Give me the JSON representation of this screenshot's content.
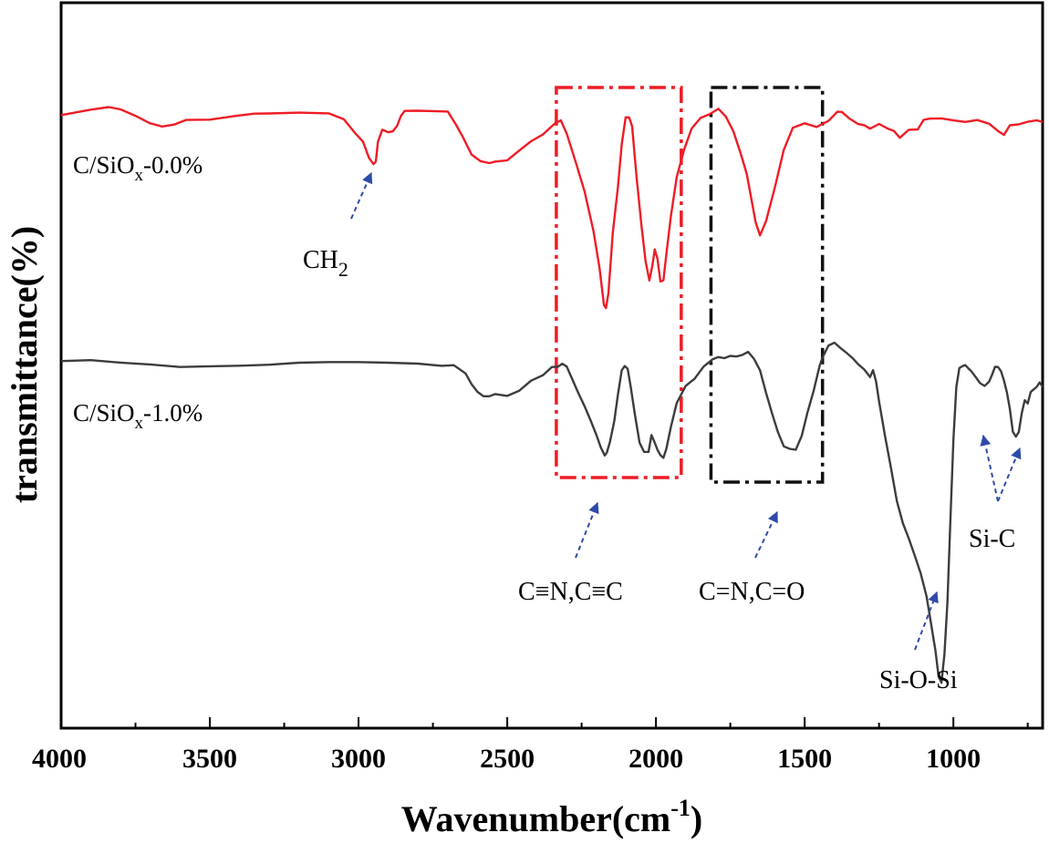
{
  "chart_data": {
    "type": "line",
    "title": "",
    "xlabel": "Wavenumber(cm",
    "xlabel_sup": "-1",
    "xlabel_close": ")",
    "ylabel": "transmittance(%)",
    "xlim": [
      4000,
      700
    ],
    "x_inverted": true,
    "yticks_shown": false,
    "grid": false,
    "xticks": [
      4000,
      3500,
      3000,
      2500,
      2000,
      1500,
      1000
    ],
    "xtick_labels": [
      "4000",
      "3500",
      "3000",
      "2500",
      "2000",
      "1500",
      "1000"
    ],
    "series": [
      {
        "name": "C/SiOx-0.0%",
        "label_main": "C/SiO",
        "label_sub": "x",
        "label_tail": "-0.0%",
        "color": "#ee1c25",
        "x": [
          4000,
          3900,
          3840,
          3800,
          3750,
          3700,
          3660,
          3620,
          3580,
          3500,
          3420,
          3350,
          3300,
          3200,
          3100,
          3050,
          3010,
          2985,
          2965,
          2950,
          2942,
          2935,
          2920,
          2900,
          2885,
          2870,
          2858,
          2845,
          2800,
          2750,
          2700,
          2672,
          2650,
          2620,
          2590,
          2560,
          2540,
          2500,
          2460,
          2420,
          2380,
          2340,
          2320,
          2300,
          2270,
          2240,
          2210,
          2190,
          2175,
          2168,
          2160,
          2145,
          2128,
          2115,
          2102,
          2090,
          2080,
          2065,
          2048,
          2035,
          2022,
          2012,
          2004,
          1995,
          1985,
          1975,
          1965,
          1950,
          1930,
          1905,
          1880,
          1850,
          1820,
          1790,
          1765,
          1740,
          1715,
          1695,
          1680,
          1665,
          1650,
          1630,
          1600,
          1570,
          1540,
          1500,
          1460,
          1420,
          1390,
          1375,
          1350,
          1320,
          1300,
          1280,
          1250,
          1220,
          1200,
          1180,
          1150,
          1120,
          1100,
          1080,
          1040,
          1000,
          960,
          920,
          880,
          850,
          830,
          810,
          780,
          750,
          720,
          700
        ],
        "y": [
          4,
          9,
          13,
          9,
          2,
          -6,
          -8,
          -5,
          -4,
          0,
          4,
          7,
          7,
          7,
          5,
          -2,
          -14,
          -28,
          -43,
          -52,
          -45,
          -28,
          -12,
          -17,
          -16,
          -7,
          4,
          7,
          7,
          7,
          7,
          -6,
          -20,
          -37,
          -48,
          -50,
          -49,
          -45,
          -36,
          -24,
          -16,
          -8,
          -2,
          -17,
          -48,
          -82,
          -122,
          -165,
          -203,
          -210,
          -190,
          -125,
          -75,
          -28,
          0,
          1,
          -8,
          -65,
          -120,
          -158,
          -178,
          -162,
          -143,
          -155,
          -180,
          -175,
          -150,
          -110,
          -65,
          -33,
          -12,
          -1,
          7,
          11,
          2,
          -14,
          -38,
          -63,
          -87,
          -113,
          -128,
          -112,
          -75,
          -33,
          -12,
          -5,
          -10,
          -3,
          6,
          8,
          -1,
          -7,
          -9,
          -9,
          -8,
          -12,
          -16,
          -20,
          -15,
          -12,
          -4,
          0,
          2,
          -4,
          -5,
          0,
          -6,
          -14,
          -18,
          -10,
          -6,
          -3,
          -1,
          -3
        ]
      },
      {
        "name": "C/SiOx-1.0%",
        "label_main": "C/SiO",
        "label_sub": "x",
        "label_tail": "-1.0%",
        "color": "#3c3c3c",
        "x": [
          4000,
          3900,
          3800,
          3700,
          3600,
          3500,
          3400,
          3300,
          3200,
          3100,
          3000,
          2900,
          2800,
          2720,
          2680,
          2660,
          2640,
          2620,
          2600,
          2580,
          2560,
          2540,
          2500,
          2460,
          2420,
          2380,
          2350,
          2330,
          2315,
          2300,
          2280,
          2260,
          2240,
          2220,
          2200,
          2185,
          2172,
          2165,
          2155,
          2140,
          2128,
          2115,
          2105,
          2095,
          2085,
          2070,
          2055,
          2040,
          2025,
          2015,
          2005,
          1995,
          1985,
          1975,
          1965,
          1950,
          1930,
          1900,
          1870,
          1840,
          1810,
          1790,
          1770,
          1750,
          1730,
          1710,
          1690,
          1670,
          1650,
          1630,
          1610,
          1590,
          1570,
          1550,
          1530,
          1510,
          1490,
          1470,
          1450,
          1440,
          1420,
          1400,
          1380,
          1360,
          1340,
          1320,
          1300,
          1280,
          1270,
          1260,
          1250,
          1230,
          1210,
          1190,
          1170,
          1150,
          1130,
          1110,
          1090,
          1075,
          1060,
          1050,
          1040,
          1030,
          1020,
          1010,
          1000,
          990,
          980,
          970,
          960,
          950,
          940,
          925,
          910,
          895,
          880,
          870,
          860,
          850,
          840,
          830,
          820,
          810,
          800,
          790,
          780,
          770,
          760,
          750,
          740,
          730,
          720,
          710,
          700
        ],
        "y": [
          1,
          2,
          0,
          -1,
          -3,
          -2,
          -2,
          -2,
          -1,
          -1,
          -1,
          -1,
          -1,
          -1,
          -3,
          -8,
          -14,
          -22,
          -31,
          -36,
          -37,
          -37,
          -36,
          -30,
          -20,
          -12,
          -6,
          -3,
          0,
          -6,
          -18,
          -32,
          -48,
          -63,
          -82,
          -95,
          -102,
          -99,
          -87,
          -63,
          -36,
          -9,
          -3,
          -8,
          -27,
          -57,
          -87,
          -97,
          -96,
          -80,
          -86,
          -98,
          -101,
          -103,
          -95,
          -72,
          -45,
          -26,
          -15,
          -5,
          2,
          5,
          7,
          8,
          8,
          7,
          10,
          5,
          -8,
          -31,
          -56,
          -78,
          -92,
          -95,
          -93,
          -80,
          -55,
          -32,
          -5,
          5,
          18,
          20,
          18,
          12,
          6,
          -2,
          -10,
          -15,
          -8,
          -20,
          -45,
          -80,
          -115,
          -150,
          -175,
          -195,
          -212,
          -232,
          -255,
          -285,
          -318,
          -345,
          -350,
          -320,
          -260,
          -175,
          -85,
          -26,
          -6,
          -2,
          -5,
          -6,
          -9,
          -16,
          -25,
          -27,
          -20,
          -12,
          -7,
          -4,
          -10,
          -18,
          -32,
          -53,
          -75,
          -82,
          -74,
          -55,
          -43,
          -44,
          -33,
          -27,
          -27,
          -23,
          -26
        ]
      }
    ],
    "annotations": [
      {
        "name": "CH2",
        "text": "CH",
        "sub": "2",
        "target_x": 2950,
        "target_series": 0
      },
      {
        "name": "triple-bond",
        "text": "C≡N,C≡C"
      },
      {
        "name": "double-bond",
        "text": "C=N,C=O"
      },
      {
        "name": "si-o-si",
        "text": "Si-O-Si",
        "target_x": 1050,
        "target_series": 1
      },
      {
        "name": "si-c",
        "text": "Si-C",
        "targets_x": [
          895,
          780
        ],
        "target_series": 1
      }
    ],
    "highlight_boxes": [
      {
        "name": "triple-bond-box",
        "x_from": 2335,
        "x_to": 1915,
        "color": "#ee1c25",
        "style": "dash-dot"
      },
      {
        "name": "double-bond-box",
        "x_from": 1815,
        "x_to": 1440,
        "color": "#111111",
        "style": "dash-dot"
      }
    ],
    "arrow_color": "#2e4aa8"
  }
}
